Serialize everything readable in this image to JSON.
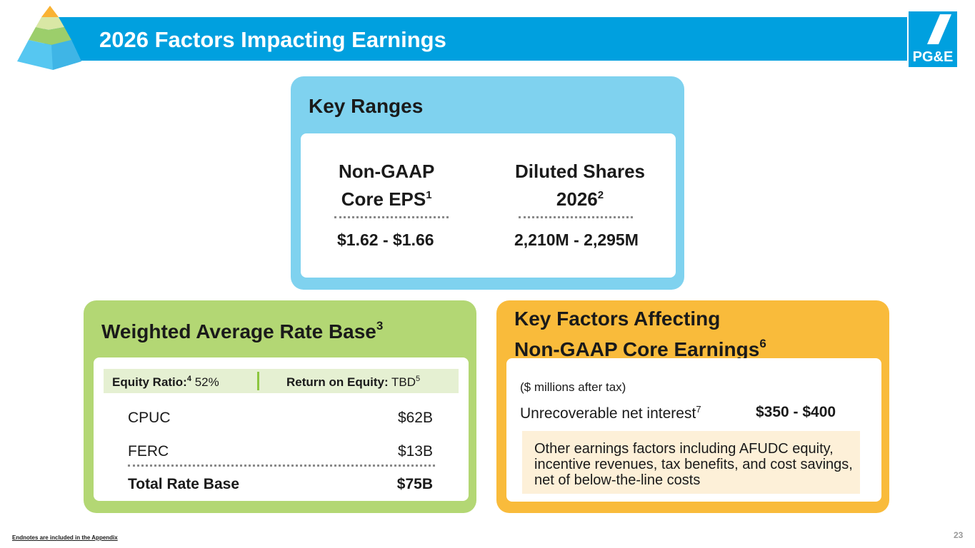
{
  "title": "2026 Factors Impacting Earnings",
  "logo_text": "PG&E",
  "colors": {
    "title_bar": "#00a0df",
    "key_ranges_card": "#7fd2ef",
    "rate_base_card": "#b3d774",
    "key_factors_card": "#f9bb3b"
  },
  "key_ranges": {
    "title": "Key Ranges",
    "eps": {
      "line1": "Non-GAAP",
      "line2": "Core EPS",
      "sup": "1",
      "value": "$1.62 - $1.66"
    },
    "shares": {
      "line1": "Diluted Shares",
      "line2": "2026",
      "sup": "2",
      "value": "2,210M - 2,295M"
    }
  },
  "rate_base": {
    "title": "Weighted Average Rate Base",
    "title_sup": "3",
    "equity_ratio_label": "Equity Ratio:",
    "equity_ratio_sup": "4",
    "equity_ratio_value": " 52%",
    "roe_label": "Return on Equity:",
    "roe_value": " TBD",
    "roe_sup": "5",
    "rows": [
      {
        "label": "CPUC",
        "value": "$62B"
      },
      {
        "label": "FERC",
        "value": "$13B"
      }
    ],
    "total": {
      "label": "Total Rate Base",
      "value": "$75B"
    }
  },
  "key_factors": {
    "title_line1": "Key Factors Affecting",
    "title_line2": "Non-GAAP Core Earnings",
    "title_sup": "6",
    "note": "($ millions after tax)",
    "item_label": "Unrecoverable net interest",
    "item_sup": "7",
    "item_value": "$350 - $400",
    "other_text": "Other earnings factors including AFUDC equity, incentive revenues, tax benefits, and cost savings, net of below-the-line costs"
  },
  "footer": {
    "endnote": "Endnotes are included in the Appendix",
    "page_number": "23"
  }
}
